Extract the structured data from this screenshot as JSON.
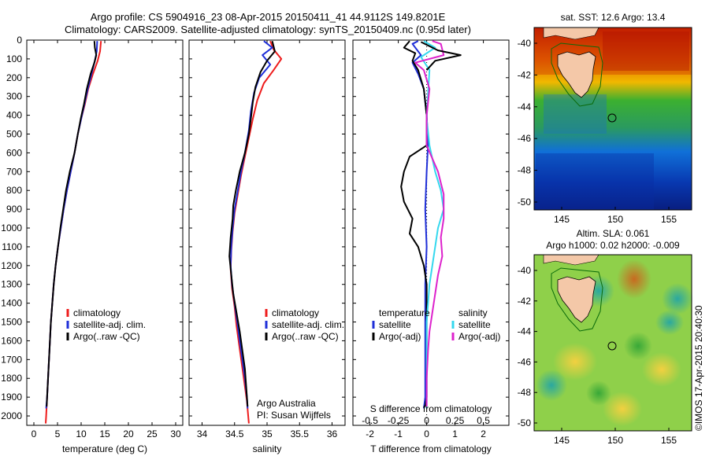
{
  "titles": {
    "line1": "Argo profile: CS 5904916_23 08-Apr-2015 20150411_41 44.9112S 149.8201E",
    "line2": "Climatology: CARS2009. Satellite-adjusted climatology: synTS_20150409.nc (0.95d later)"
  },
  "colors": {
    "climatology": "#ee1c1c",
    "satellite": "#1f2fd8",
    "argo": "#000000",
    "sat_salinity": "#34d8ee",
    "argo_salinity": "#dd22cc"
  },
  "depth_ticks": [
    "0",
    "100",
    "200",
    "300",
    "400",
    "500",
    "600",
    "700",
    "800",
    "900",
    "1000",
    "1100",
    "1200",
    "1300",
    "1400",
    "1500",
    "1600",
    "1700",
    "1800",
    "1900",
    "2000"
  ],
  "chart_data": [
    {
      "type": "line",
      "id": "temperature",
      "xlabel": "temperature (deg C)",
      "ylabel": "",
      "xlim": [
        -1.5,
        31.5
      ],
      "ylim": [
        2050,
        0
      ],
      "xticks": [
        "0",
        "5",
        "10",
        "15",
        "20",
        "25",
        "30"
      ],
      "legend": [
        "climatology",
        "satellite-adj. clim.",
        "Argo(..raw -QC)"
      ],
      "series": [
        {
          "name": "climatology",
          "points": [
            [
              14.2,
              5
            ],
            [
              14,
              60
            ],
            [
              13.5,
              110
            ],
            [
              12.5,
              180
            ],
            [
              11.5,
              260
            ],
            [
              10.8,
              340
            ],
            [
              10,
              420
            ],
            [
              9.3,
              500
            ],
            [
              8.6,
              600
            ],
            [
              7.8,
              700
            ],
            [
              7,
              800
            ],
            [
              6.3,
              900
            ],
            [
              5.7,
              1000
            ],
            [
              5.1,
              1100
            ],
            [
              4.6,
              1200
            ],
            [
              4.2,
              1300
            ],
            [
              3.9,
              1400
            ],
            [
              3.6,
              1500
            ],
            [
              3.4,
              1600
            ],
            [
              3.2,
              1700
            ],
            [
              3,
              1800
            ],
            [
              2.8,
              1900
            ],
            [
              2.6,
              2000
            ],
            [
              2.5,
              2040
            ]
          ]
        },
        {
          "name": "satellite-adj. clim.",
          "points": [
            [
              13.4,
              5
            ],
            [
              13.3,
              60
            ],
            [
              12.9,
              110
            ],
            [
              12.2,
              180
            ],
            [
              11.4,
              260
            ],
            [
              10.7,
              340
            ],
            [
              10,
              420
            ],
            [
              9.3,
              500
            ],
            [
              8.6,
              600
            ],
            [
              7.8,
              700
            ],
            [
              7,
              800
            ],
            [
              6.3,
              900
            ],
            [
              5.7,
              1000
            ],
            [
              5.1,
              1100
            ],
            [
              4.6,
              1200
            ],
            [
              4.2,
              1300
            ],
            [
              3.9,
              1400
            ],
            [
              3.6,
              1500
            ],
            [
              3.4,
              1600
            ],
            [
              3.2,
              1700
            ],
            [
              3,
              1800
            ],
            [
              2.8,
              1900
            ],
            [
              2.6,
              1960
            ]
          ]
        },
        {
          "name": "Argo(..raw -QC)",
          "points": [
            [
              12.8,
              5
            ],
            [
              12.9,
              40
            ],
            [
              13.2,
              80
            ],
            [
              12.8,
              120
            ],
            [
              12,
              180
            ],
            [
              11.2,
              260
            ],
            [
              10.6,
              340
            ],
            [
              9.9,
              420
            ],
            [
              9.3,
              500
            ],
            [
              8.6,
              600
            ],
            [
              7.6,
              700
            ],
            [
              6.8,
              800
            ],
            [
              6.2,
              900
            ],
            [
              5.6,
              1000
            ],
            [
              5.1,
              1100
            ],
            [
              4.6,
              1200
            ],
            [
              4.2,
              1300
            ],
            [
              3.9,
              1400
            ],
            [
              3.6,
              1500
            ],
            [
              3.4,
              1600
            ],
            [
              3.2,
              1700
            ],
            [
              3,
              1800
            ],
            [
              2.8,
              1900
            ],
            [
              2.7,
              1950
            ]
          ]
        }
      ]
    },
    {
      "type": "line",
      "id": "salinity",
      "xlabel": "salinity",
      "ylabel": "",
      "xlim": [
        33.8,
        36.2
      ],
      "ylim": [
        2050,
        0
      ],
      "xticks": [
        "34",
        "34.5",
        "35",
        "35.5",
        "36"
      ],
      "legend": [
        "climatology",
        "satellite-adj. clim.",
        "Argo(..raw -QC)"
      ],
      "annotation": [
        "Argo Australia",
        "PI: Susan Wijffels"
      ],
      "series": [
        {
          "name": "climatology",
          "points": [
            [
              35.05,
              5
            ],
            [
              35.1,
              50
            ],
            [
              35.22,
              100
            ],
            [
              35.1,
              160
            ],
            [
              34.95,
              230
            ],
            [
              34.85,
              320
            ],
            [
              34.78,
              420
            ],
            [
              34.72,
              520
            ],
            [
              34.66,
              620
            ],
            [
              34.6,
              720
            ],
            [
              34.55,
              820
            ],
            [
              34.5,
              920
            ],
            [
              34.47,
              1020
            ],
            [
              34.45,
              1120
            ],
            [
              34.44,
              1220
            ],
            [
              34.46,
              1320
            ],
            [
              34.5,
              1420
            ],
            [
              34.53,
              1520
            ],
            [
              34.57,
              1620
            ],
            [
              34.61,
              1720
            ],
            [
              34.65,
              1820
            ],
            [
              34.69,
              1920
            ],
            [
              34.72,
              2040
            ]
          ]
        },
        {
          "name": "satellite-adj. clim.",
          "points": [
            [
              34.95,
              5
            ],
            [
              35.08,
              40
            ],
            [
              34.93,
              80
            ],
            [
              35.05,
              130
            ],
            [
              34.88,
              200
            ],
            [
              34.8,
              280
            ],
            [
              34.75,
              380
            ],
            [
              34.72,
              480
            ],
            [
              34.66,
              600
            ],
            [
              34.6,
              700
            ],
            [
              34.55,
              800
            ],
            [
              34.5,
              900
            ],
            [
              34.47,
              1000
            ],
            [
              34.45,
              1100
            ],
            [
              34.44,
              1200
            ],
            [
              34.46,
              1300
            ],
            [
              34.5,
              1400
            ],
            [
              34.54,
              1500
            ],
            [
              34.58,
              1600
            ],
            [
              34.62,
              1700
            ],
            [
              34.66,
              1800
            ],
            [
              34.69,
              1900
            ],
            [
              34.7,
              1960
            ]
          ]
        },
        {
          "name": "Argo(..raw -QC)",
          "points": [
            [
              35.08,
              5
            ],
            [
              35.12,
              60
            ],
            [
              35,
              110
            ],
            [
              34.9,
              170
            ],
            [
              34.82,
              250
            ],
            [
              34.78,
              330
            ],
            [
              34.75,
              420
            ],
            [
              34.72,
              500
            ],
            [
              34.66,
              600
            ],
            [
              34.58,
              700
            ],
            [
              34.52,
              800
            ],
            [
              34.48,
              880
            ],
            [
              34.47,
              950
            ],
            [
              34.44,
              1050
            ],
            [
              34.42,
              1150
            ],
            [
              34.45,
              1250
            ],
            [
              34.48,
              1350
            ],
            [
              34.53,
              1450
            ],
            [
              34.58,
              1550
            ],
            [
              34.62,
              1650
            ],
            [
              34.66,
              1750
            ],
            [
              34.68,
              1850
            ],
            [
              34.7,
              1950
            ]
          ]
        }
      ]
    },
    {
      "type": "line",
      "id": "difference",
      "xlabel": "T difference from climatology",
      "xlabel_top": "S difference from climatology",
      "xlim": [
        -2.6,
        2.9
      ],
      "ylim": [
        2050,
        0
      ],
      "xticks": [
        "-2",
        "-1",
        "0",
        "1",
        "2"
      ],
      "xticks_top": [
        "-0.5",
        "-0.25",
        "0",
        "0.25",
        "0.5"
      ],
      "xticks_top_values": [
        -2,
        -1,
        0,
        1,
        2
      ],
      "legend": [
        "temperature",
        "satellite",
        "Argo(-adj)",
        "salinity",
        "satellite",
        "Argo(-adj)"
      ],
      "series": [
        {
          "name": "temperature satellite",
          "points": [
            [
              -0.3,
              5
            ],
            [
              -0.5,
              20
            ],
            [
              -0.2,
              80
            ],
            [
              -0.5,
              120
            ],
            [
              -0.3,
              180
            ],
            [
              -0.1,
              260
            ],
            [
              0,
              400
            ],
            [
              0.05,
              550
            ],
            [
              0,
              700
            ],
            [
              -0.05,
              900
            ],
            [
              0,
              1100
            ],
            [
              -0.05,
              1300
            ],
            [
              -0.05,
              1500
            ],
            [
              -0.05,
              1700
            ],
            [
              -0.05,
              1900
            ],
            [
              -0.1,
              1960
            ]
          ]
        },
        {
          "name": "temperature Argo(-adj)",
          "points": [
            [
              -0.6,
              5
            ],
            [
              -0.8,
              40
            ],
            [
              -0.4,
              70
            ],
            [
              -0.5,
              110
            ],
            [
              -0.3,
              160
            ],
            [
              -0.1,
              260
            ],
            [
              0,
              400
            ],
            [
              0,
              560
            ],
            [
              -0.6,
              620
            ],
            [
              -0.8,
              700
            ],
            [
              -0.9,
              780
            ],
            [
              -0.8,
              860
            ],
            [
              -0.5,
              950
            ],
            [
              -0.6,
              1030
            ],
            [
              -0.3,
              1100
            ],
            [
              -0.1,
              1200
            ],
            [
              0,
              1300
            ],
            [
              0,
              1500
            ],
            [
              0,
              1700
            ],
            [
              0,
              1900
            ],
            [
              -0.05,
              1950
            ]
          ]
        },
        {
          "name": "salinity satellite",
          "points": [
            [
              -0.1,
              5
            ],
            [
              0.3,
              40
            ],
            [
              -0.2,
              90
            ],
            [
              0.1,
              160
            ],
            [
              0.05,
              280
            ],
            [
              0,
              420
            ],
            [
              0.1,
              560
            ],
            [
              0.3,
              700
            ],
            [
              0.5,
              800
            ],
            [
              0.6,
              900
            ],
            [
              0.4,
              1000
            ],
            [
              0.3,
              1100
            ],
            [
              0.2,
              1200
            ],
            [
              0.1,
              1300
            ],
            [
              0.05,
              1400
            ],
            [
              0,
              1500
            ],
            [
              0,
              1700
            ],
            [
              0,
              1900
            ],
            [
              0,
              1960
            ]
          ]
        },
        {
          "name": "salinity Argo(-adj)",
          "points": [
            [
              0.2,
              5
            ],
            [
              0.5,
              20
            ],
            [
              0.6,
              80
            ],
            [
              -0.4,
              120
            ],
            [
              -0.1,
              160
            ],
            [
              0.1,
              260
            ],
            [
              0,
              400
            ],
            [
              0,
              560
            ],
            [
              0.4,
              700
            ],
            [
              0.6,
              820
            ],
            [
              0.6,
              950
            ],
            [
              0.5,
              1050
            ],
            [
              0.55,
              1150
            ],
            [
              0.4,
              1250
            ],
            [
              0.3,
              1350
            ],
            [
              0.2,
              1450
            ],
            [
              0.1,
              1550
            ],
            [
              0.05,
              1650
            ],
            [
              0,
              1800
            ],
            [
              0,
              1950
            ]
          ]
        },
        {
          "name": "Argo(-adj) extra",
          "points": [
            [
              -0.2,
              10
            ],
            [
              0.4,
              55
            ],
            [
              1.2,
              80
            ],
            [
              0.3,
              110
            ],
            [
              0,
              160
            ]
          ]
        }
      ]
    }
  ],
  "maps": {
    "sst": {
      "title": "sat. SST: 12.6 Argo: 13.4",
      "lat_ticks": [
        "-40",
        "-42",
        "-44",
        "-46",
        "-48",
        "-50"
      ],
      "lon_ticks": [
        "145",
        "150",
        "155"
      ]
    },
    "sla": {
      "title1": "Altim. SLA: 0.061",
      "title2": "Argo h1000: 0.02 h2000: -0.009",
      "lat_ticks": [
        "-40",
        "-42",
        "-44",
        "-46",
        "-48",
        "-50"
      ],
      "lon_ticks": [
        "145",
        "150",
        "155"
      ]
    }
  },
  "footer": {
    "credit": "©IMOS 17-Apr-2015 20:40:30"
  }
}
